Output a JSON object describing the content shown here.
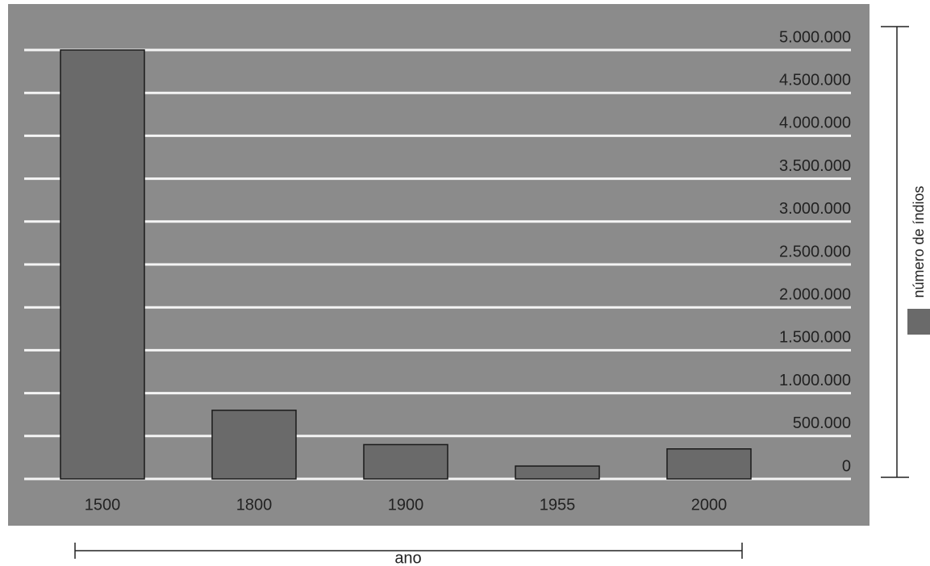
{
  "chart_data": {
    "type": "bar",
    "categories": [
      "1500",
      "1800",
      "1900",
      "1955",
      "2000"
    ],
    "series": [
      {
        "name": "número de índios",
        "color": "#6a6a6a",
        "values": [
          5000000,
          800000,
          400000,
          150000,
          350000
        ]
      }
    ],
    "x_label": "ano",
    "ylim": [
      0,
      5000000
    ],
    "yticks": [
      0,
      {
        "value": 500000,
        "label": "500.000"
      },
      {
        "value": 1000000,
        "label": "1.000.000"
      },
      {
        "value": 1500000,
        "label": "1.500.000"
      },
      {
        "value": 2000000,
        "label": "2.000.000"
      },
      {
        "value": 2500000,
        "label": "2.500.000"
      },
      {
        "value": 3000000,
        "label": "3.000.000"
      },
      {
        "value": 3500000,
        "label": "3.500.000"
      },
      {
        "value": 4000000,
        "label": "4.000.000"
      },
      {
        "value": 4500000,
        "label": "4.500.000"
      },
      {
        "value": 5000000,
        "label": "5.000.000"
      }
    ],
    "grid": true,
    "legend": "right"
  }
}
